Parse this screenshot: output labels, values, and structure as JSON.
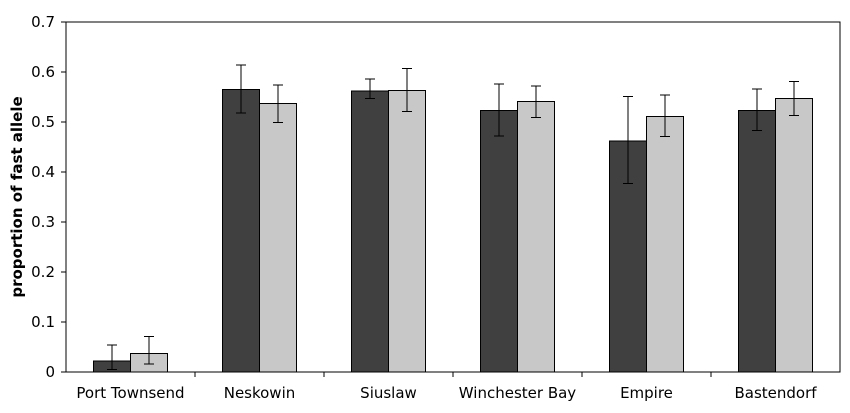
{
  "chart_data": {
    "type": "bar",
    "title": "",
    "xlabel": "",
    "ylabel": "proportion of fast allele",
    "ylim": [
      0,
      0.7
    ],
    "yticks": [
      "0",
      "0.1",
      "0.2",
      "0.3",
      "0.4",
      "0.5",
      "0.6",
      "0.7"
    ],
    "grid": false,
    "legend": "none",
    "categories": [
      "Port Townsend",
      "Neskowin",
      "Siuslaw",
      "Winchester Bay",
      "Empire",
      "Bastendorf"
    ],
    "series": [
      {
        "color": "#404040",
        "values": [
          0.022,
          0.565,
          0.562,
          0.523,
          0.462,
          0.523
        ],
        "error_low": [
          0.005,
          0.518,
          0.547,
          0.472,
          0.377,
          0.483
        ],
        "error_high": [
          0.054,
          0.614,
          0.586,
          0.576,
          0.551,
          0.566
        ]
      },
      {
        "color": "#c8c8c8",
        "values": [
          0.037,
          0.537,
          0.563,
          0.541,
          0.511,
          0.547
        ],
        "error_low": [
          0.016,
          0.499,
          0.521,
          0.509,
          0.471,
          0.513
        ],
        "error_high": [
          0.071,
          0.574,
          0.607,
          0.572,
          0.554,
          0.581
        ]
      }
    ]
  }
}
